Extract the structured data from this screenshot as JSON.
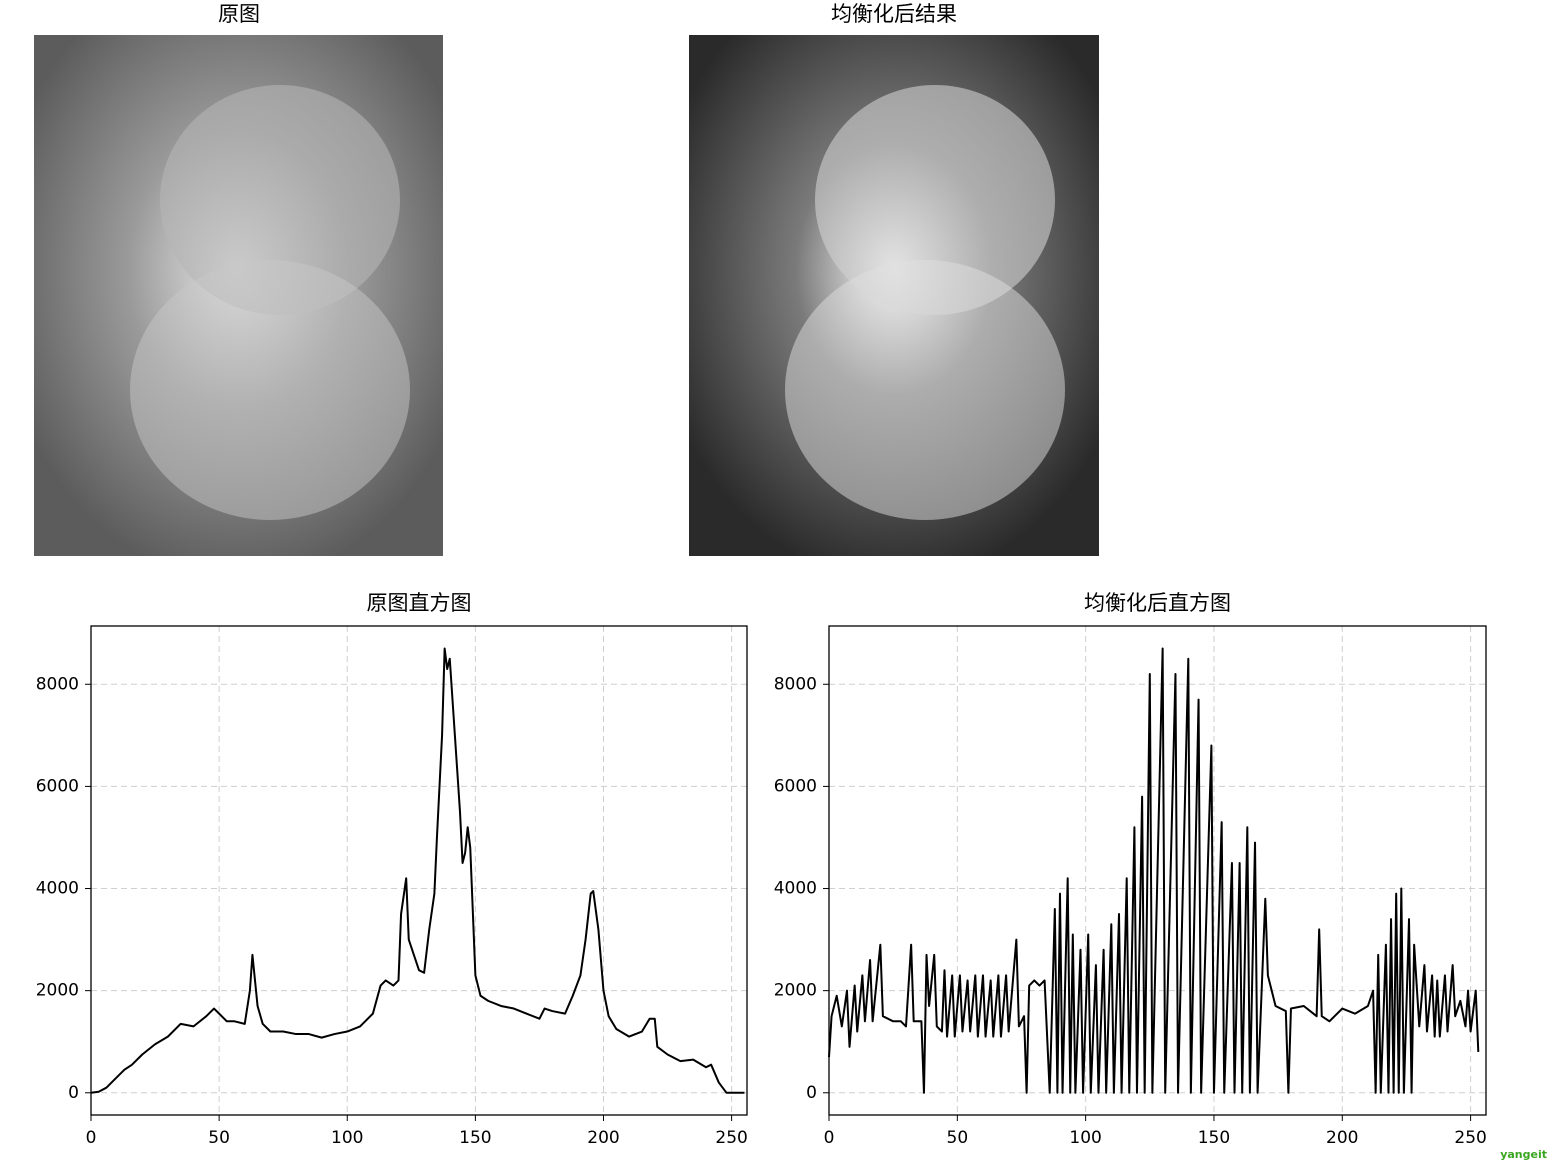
{
  "images": [
    {
      "title": "原图"
    },
    {
      "title": "均衡化后结果"
    }
  ],
  "chart_data": [
    {
      "type": "line",
      "title": "原图直方图",
      "x": [
        0,
        3,
        6,
        10,
        13,
        16,
        20,
        25,
        30,
        35,
        40,
        45,
        48,
        50,
        53,
        56,
        60,
        62,
        63,
        65,
        67,
        70,
        75,
        80,
        85,
        90,
        95,
        100,
        105,
        110,
        113,
        115,
        118,
        120,
        121,
        123,
        124,
        126,
        128,
        130,
        132,
        134,
        135,
        137,
        138,
        139,
        140,
        142,
        144,
        145,
        146,
        147,
        148,
        150,
        152,
        155,
        160,
        165,
        170,
        175,
        177,
        180,
        185,
        188,
        191,
        193,
        195,
        196,
        198,
        200,
        202,
        205,
        210,
        215,
        218,
        220,
        221,
        225,
        230,
        235,
        240,
        242,
        245,
        248,
        255
      ],
      "series": [
        {
          "color": "#000000",
          "values": [
            0,
            20,
            100,
            300,
            450,
            550,
            750,
            950,
            1100,
            1350,
            1300,
            1500,
            1650,
            1550,
            1400,
            1400,
            1350,
            2000,
            2700,
            1700,
            1350,
            1200,
            1200,
            1150,
            1150,
            1080,
            1150,
            1200,
            1300,
            1550,
            2100,
            2200,
            2100,
            2200,
            3500,
            4200,
            3000,
            2700,
            2400,
            2350,
            3200,
            3900,
            5000,
            7000,
            8700,
            8300,
            8500,
            7000,
            5500,
            4500,
            4700,
            5200,
            4800,
            2300,
            1900,
            1800,
            1700,
            1650,
            1550,
            1450,
            1650,
            1600,
            1550,
            1900,
            2300,
            3000,
            3900,
            3950,
            3200,
            2000,
            1500,
            1250,
            1100,
            1200,
            1450,
            1450,
            900,
            750,
            620,
            650,
            500,
            550,
            200,
            0,
            0
          ]
        }
      ],
      "xlim": [
        0,
        256
      ],
      "ylim": [
        -435,
        9141
      ],
      "xticks": [
        0,
        50,
        100,
        150,
        200,
        250
      ],
      "yticks": [
        0,
        2000,
        4000,
        6000,
        8000
      ],
      "grid": true
    },
    {
      "type": "line",
      "title": "均衡化后直方图",
      "x": [
        0,
        1,
        3,
        5,
        7,
        8,
        10,
        11,
        13,
        14,
        16,
        17,
        20,
        21,
        25,
        28,
        30,
        32,
        33,
        36,
        37,
        38,
        39,
        41,
        42,
        44,
        45,
        46,
        48,
        49,
        51,
        52,
        54,
        55,
        57,
        58,
        60,
        61,
        63,
        64,
        66,
        67,
        69,
        70,
        73,
        74,
        76,
        77,
        78,
        80,
        82,
        84,
        86,
        88,
        89,
        90,
        91,
        93,
        94,
        95,
        96,
        98,
        99,
        101,
        102,
        104,
        105,
        107,
        108,
        110,
        111,
        113,
        114,
        116,
        117,
        119,
        120,
        122,
        123,
        125,
        126,
        130,
        131,
        135,
        136,
        140,
        141,
        144,
        145,
        149,
        150,
        153,
        154,
        157,
        158,
        160,
        161,
        163,
        164,
        166,
        167,
        170,
        171,
        174,
        178,
        179,
        180,
        185,
        190,
        191,
        192,
        195,
        200,
        205,
        210,
        212,
        213,
        214,
        215,
        217,
        218,
        219,
        220,
        221,
        222,
        223,
        224,
        226,
        227,
        228,
        230,
        232,
        233,
        235,
        236,
        237,
        238,
        240,
        241,
        243,
        244,
        246,
        248,
        249,
        250,
        252,
        253
      ],
      "series": [
        {
          "color": "#000000",
          "values": [
            700,
            1500,
            1900,
            1300,
            2000,
            900,
            2100,
            1200,
            2300,
            1400,
            2600,
            1400,
            2900,
            1500,
            1400,
            1400,
            1300,
            2900,
            1400,
            1400,
            0,
            2700,
            1700,
            2700,
            1300,
            1200,
            2400,
            1100,
            2300,
            1100,
            2300,
            1200,
            2200,
            1200,
            2300,
            1100,
            2300,
            1100,
            2200,
            1100,
            2300,
            1100,
            2300,
            1200,
            3000,
            1300,
            1500,
            0,
            2100,
            2200,
            2100,
            2200,
            0,
            3600,
            0,
            3900,
            0,
            4200,
            0,
            3100,
            0,
            2800,
            0,
            3100,
            0,
            2500,
            0,
            2800,
            0,
            3300,
            0,
            3500,
            0,
            4200,
            0,
            5200,
            0,
            5800,
            0,
            8200,
            0,
            8700,
            0,
            8200,
            0,
            8500,
            0,
            7700,
            0,
            6800,
            0,
            5300,
            0,
            4500,
            0,
            4500,
            0,
            5200,
            0,
            4900,
            0,
            3800,
            2300,
            1700,
            1600,
            0,
            1650,
            1700,
            1500,
            3200,
            1500,
            1400,
            1650,
            1550,
            1700,
            2000,
            0,
            2700,
            0,
            2900,
            0,
            3400,
            0,
            3900,
            0,
            4000,
            0,
            3400,
            0,
            2900,
            1300,
            2500,
            1200,
            2300,
            1100,
            2200,
            1100,
            2300,
            1200,
            2500,
            1500,
            1800,
            1300,
            2000,
            1200,
            2000,
            800
          ]
        }
      ],
      "xlim": [
        0,
        256
      ],
      "ylim": [
        -435,
        9141
      ],
      "xticks": [
        0,
        50,
        100,
        150,
        200,
        250
      ],
      "yticks": [
        0,
        2000,
        4000,
        6000,
        8000
      ],
      "grid": true
    }
  ],
  "watermark": "yangeit"
}
